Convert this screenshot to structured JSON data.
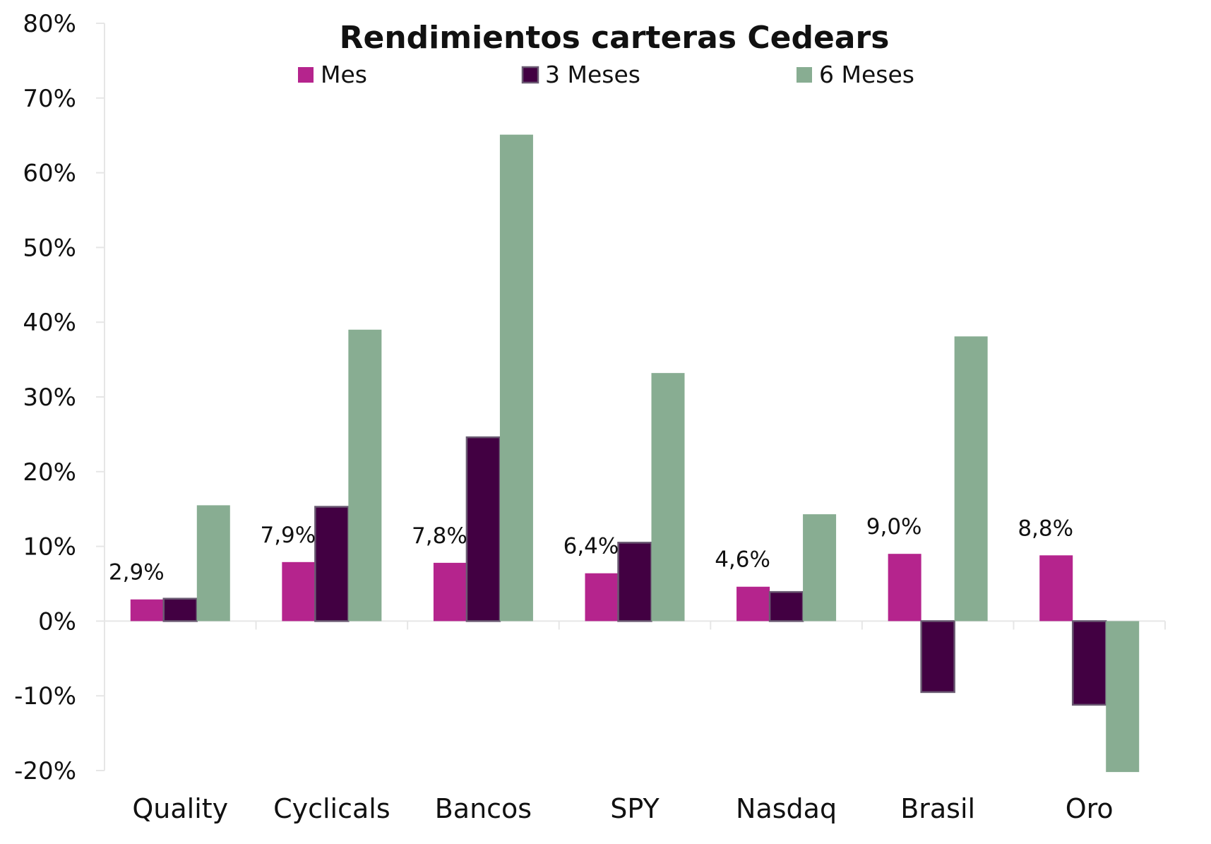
{
  "chart_data": {
    "type": "bar",
    "title": "Rendimientos carteras Cedears",
    "xlabel": "",
    "ylabel": "",
    "categories": [
      "Quality",
      "Cyclicals",
      "Bancos",
      "SPY",
      "Nasdaq",
      "Brasil",
      "Oro"
    ],
    "series": [
      {
        "name": "Mes",
        "color": "#b5248d",
        "values": [
          2.9,
          7.9,
          7.8,
          6.4,
          4.6,
          9.0,
          8.8
        ]
      },
      {
        "name": "3 Meses",
        "color": "#420042",
        "values": [
          3.0,
          15.3,
          24.6,
          10.5,
          3.9,
          -9.5,
          -11.2
        ]
      },
      {
        "name": "6 Meses",
        "color": "#88ad92",
        "values": [
          15.5,
          39.0,
          65.1,
          33.2,
          14.3,
          38.1,
          -20.2
        ]
      }
    ],
    "data_labels": {
      "series": "Mes",
      "texts": [
        "2,9%",
        "7,9%",
        "7,8%",
        "6,4%",
        "4,6%",
        "9,0%",
        "8,8%"
      ]
    },
    "ylim": [
      -20,
      80
    ],
    "yticks": [
      80,
      70,
      60,
      50,
      40,
      30,
      20,
      10,
      0,
      -10,
      -20
    ],
    "ytick_labels": [
      "80%",
      "70%",
      "60%",
      "50%",
      "40%",
      "30%",
      "20%",
      "10%",
      "0%",
      "-10%",
      "-20%"
    ],
    "grid": false,
    "legend_position": "top-center"
  }
}
